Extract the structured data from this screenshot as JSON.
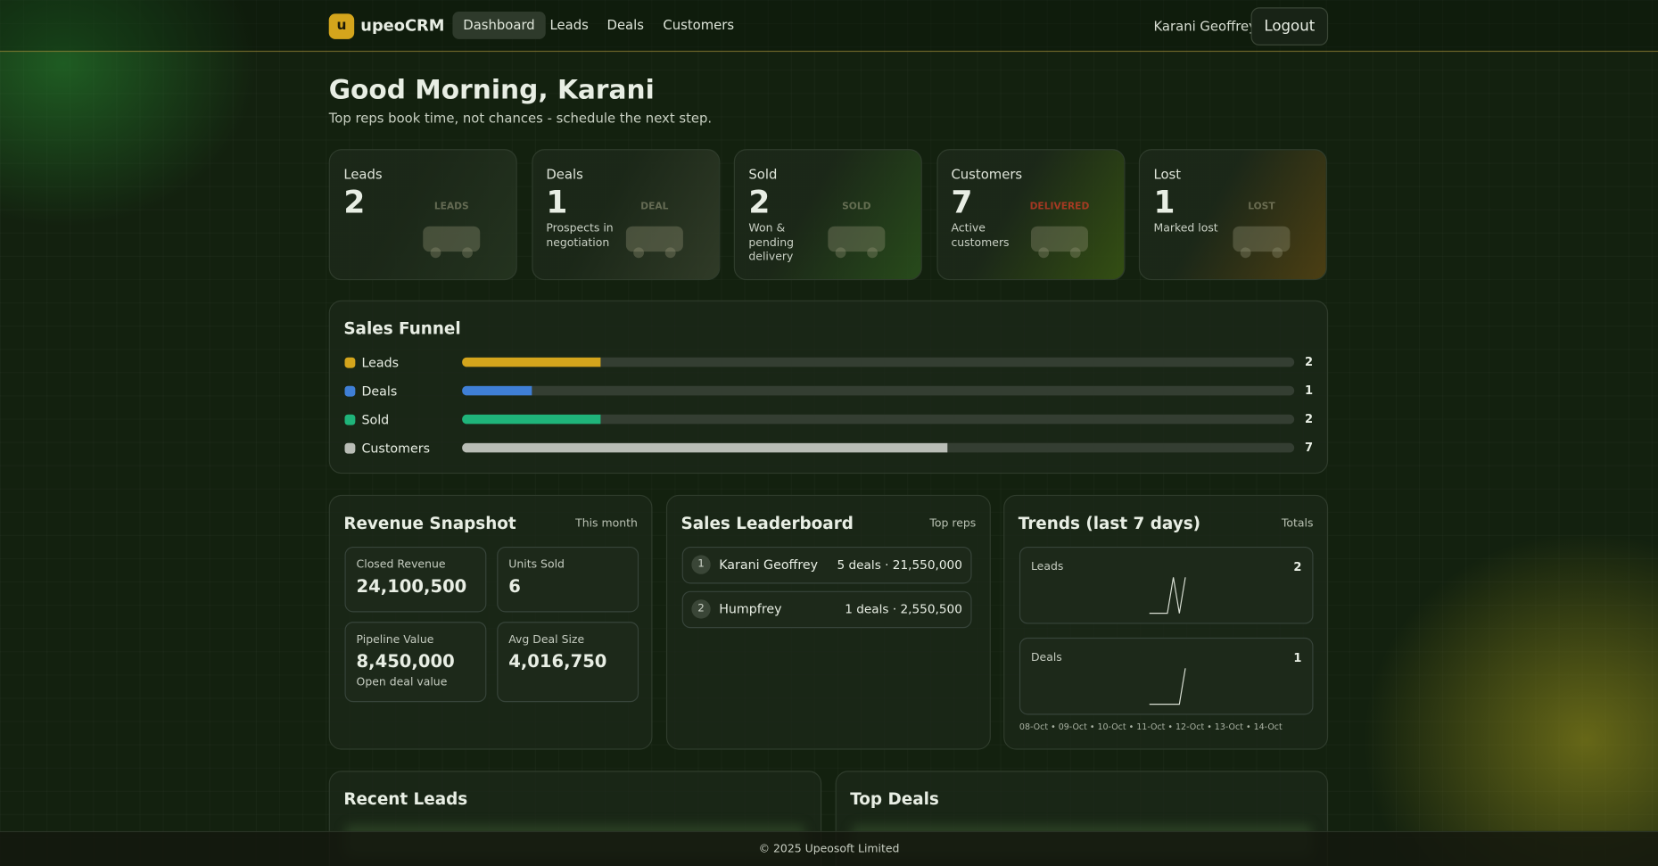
{
  "nav": {
    "logo_letter": "u",
    "brand": "upeoCRM",
    "links": [
      "Dashboard",
      "Leads",
      "Deals",
      "Customers"
    ],
    "user": "Karani Geoffrey",
    "logout": "Logout"
  },
  "header": {
    "title": "Good Morning, Karani",
    "subtitle": "Top reps book time, not chances - schedule the next step."
  },
  "stats": [
    {
      "label": "Leads",
      "value": 2,
      "badge": "LEADS"
    },
    {
      "label": "Deals",
      "value": 1,
      "note": "Prospects in negotiation",
      "badge": "DEAL"
    },
    {
      "label": "Sold",
      "value": 2,
      "note": "Won & pending delivery",
      "badge": "SOLD"
    },
    {
      "label": "Customers",
      "value": 7,
      "note": "Active customers",
      "badge": "DELIVERED"
    },
    {
      "label": "Lost",
      "value": 1,
      "note": "Marked lost",
      "badge": "LOST"
    }
  ],
  "funnel": {
    "title": "Sales Funnel",
    "rows": [
      {
        "name": "Leads",
        "value": 2,
        "color": "#d4a51c"
      },
      {
        "name": "Deals",
        "value": 1,
        "color": "#3f7fd6"
      },
      {
        "name": "Sold",
        "value": 2,
        "color": "#1fb47a"
      },
      {
        "name": "Customers",
        "value": 7,
        "color": "#b9bdb6"
      }
    ]
  },
  "revenue": {
    "title": "Revenue Snapshot",
    "period": "This month",
    "tiles": [
      {
        "label": "Closed Revenue",
        "value": "24,100,500"
      },
      {
        "label": "Units Sold",
        "value": 6
      },
      {
        "label": "Pipeline Value",
        "value": "8,450,000",
        "note": "Open deal value"
      },
      {
        "label": "Avg Deal Size",
        "value": "4,016,750"
      }
    ]
  },
  "leaderboard": {
    "title": "Sales Leaderboard",
    "hint": "Top reps",
    "rows": [
      {
        "rank": 1,
        "name": "Karani Geoffrey",
        "summary": "5 deals · 21,550,000"
      },
      {
        "rank": 2,
        "name": "Humpfrey",
        "summary": "1 deals · 2,550,500"
      }
    ]
  },
  "trends": {
    "title": "Trends (last 7 days)",
    "hint": "Totals",
    "charts": [
      {
        "label": "Leads",
        "total": 2,
        "values": [
          0,
          0,
          0,
          0,
          1,
          0,
          1
        ]
      },
      {
        "label": "Deals",
        "total": 1,
        "values": [
          0,
          0,
          0,
          0,
          0,
          0,
          1
        ]
      }
    ],
    "dates": "08-Oct • 09-Oct • 10-Oct • 11-Oct • 12-Oct • 13-Oct • 14-Oct"
  },
  "recent_leads": {
    "title": "Recent Leads"
  },
  "top_deals": {
    "title": "Top Deals"
  },
  "footer": "© 2025 Upeosoft Limited"
}
